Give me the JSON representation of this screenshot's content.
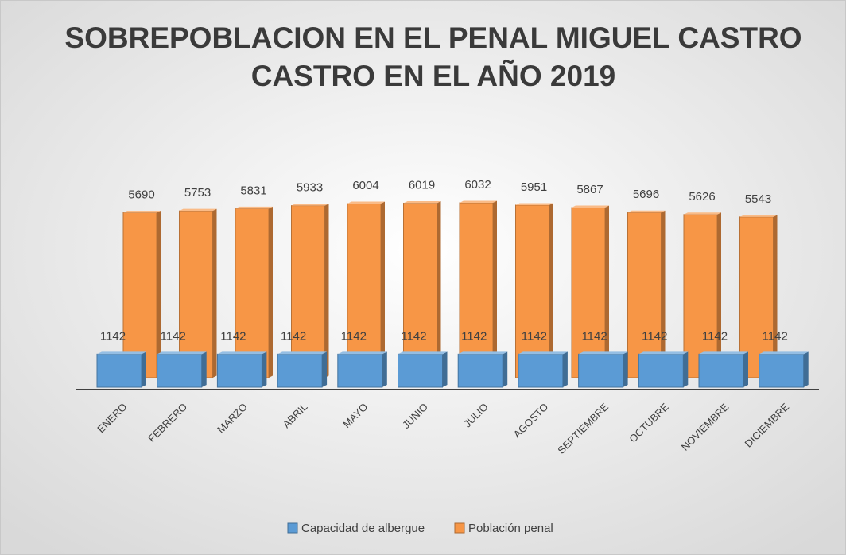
{
  "chart_data": {
    "type": "bar3d",
    "title": [
      "SOBREPOBLACION EN EL PENAL MIGUEL CASTRO",
      "CASTRO EN EL AÑO 2019"
    ],
    "categories": [
      "ENERO",
      "FEBRERO",
      "MARZO",
      "ABRIL",
      "MAYO",
      "JUNIO",
      "JULIO",
      "AGOSTO",
      "SEPTIEMBRE",
      "OCTUBRE",
      "NOVIEMBRE",
      "DICIEMBRE"
    ],
    "series": [
      {
        "name": "Capacidad de albergue",
        "color": "#5b9bd5",
        "values": [
          1142,
          1142,
          1142,
          1142,
          1142,
          1142,
          1142,
          1142,
          1142,
          1142,
          1142,
          1142
        ]
      },
      {
        "name": "Población penal",
        "color": "#f79646",
        "values": [
          5690,
          5753,
          5831,
          5933,
          6004,
          6019,
          6032,
          5951,
          5867,
          5696,
          5626,
          5543
        ]
      }
    ],
    "legend": "bottom"
  }
}
